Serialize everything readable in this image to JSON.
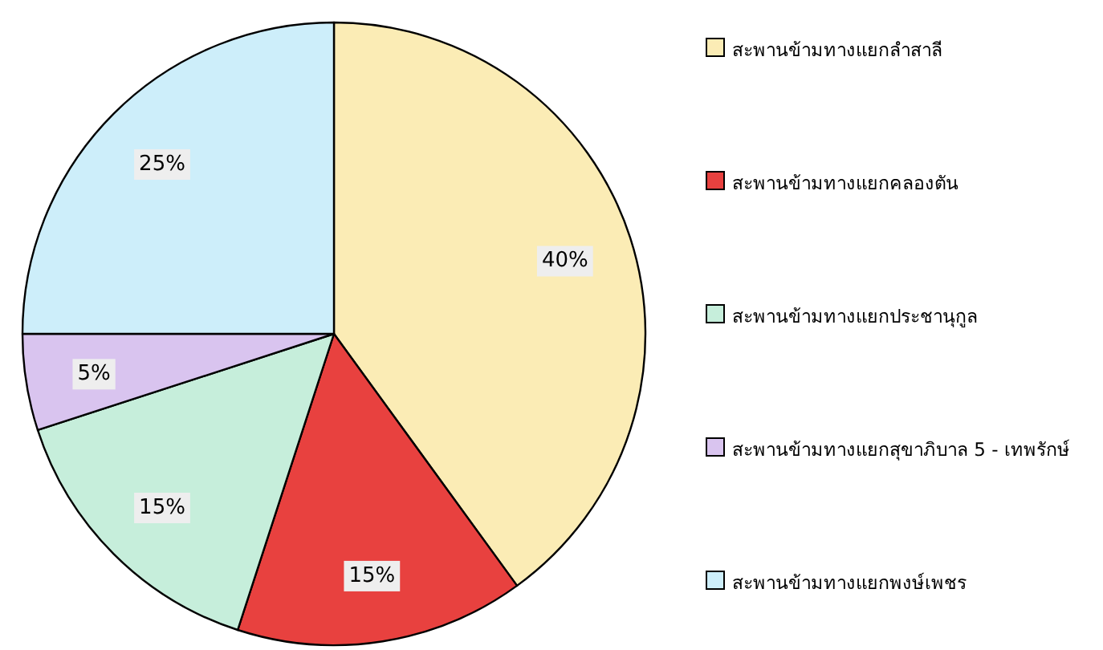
{
  "chart_data": {
    "type": "pie",
    "categories": [
      "สะพานข้ามทางแยกลำสาลี",
      "สะพานข้ามทางแยกคลองตัน",
      "สะพานข้ามทางแยกประชานุกูล",
      "สะพานข้ามทางแยกสุขาภิบาล 5 - เทพรักษ์",
      "สะพานข้ามทางแยกพงษ์เพชร"
    ],
    "values": [
      40,
      15,
      15,
      5,
      25
    ],
    "value_labels": [
      "40%",
      "15%",
      "15%",
      "5%",
      "25%"
    ],
    "colors": [
      "#fbecb5",
      "#e8413f",
      "#c6eedb",
      "#d9c4ef",
      "#cdeefa"
    ],
    "legend": "right"
  }
}
